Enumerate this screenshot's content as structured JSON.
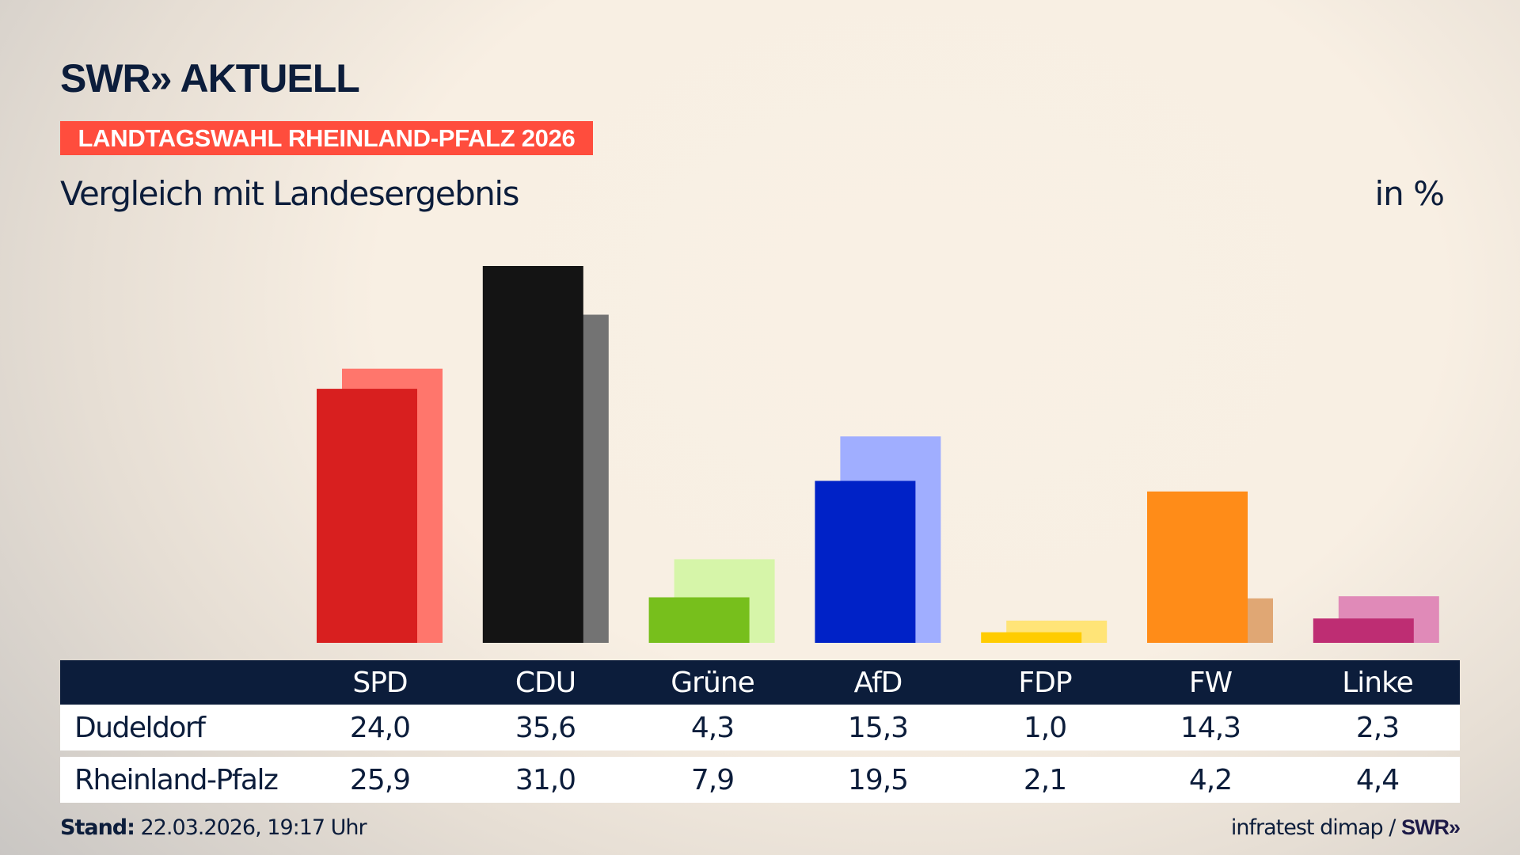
{
  "header": {
    "logo": "SWR» AKTUELL",
    "badge": "LANDTAGSWAHL RHEINLAND-PFALZ 2026",
    "subtitle": "Vergleich mit Landesergebnis",
    "unit": "in %"
  },
  "colors": {
    "background": "#f8efe3",
    "badge": "#ff4d3d",
    "navy": "#0c1d3b"
  },
  "chart_data": {
    "type": "bar",
    "title": "Vergleich mit Landesergebnis",
    "ylabel": "in %",
    "ylim": [
      0,
      35.6
    ],
    "grid": false,
    "categories": [
      "SPD",
      "CDU",
      "Grüne",
      "AfD",
      "FDP",
      "FW",
      "Linke"
    ],
    "series": [
      {
        "name": "Dudeldorf",
        "values": [
          24.0,
          35.6,
          4.3,
          15.3,
          1.0,
          14.3,
          2.3
        ],
        "colors": [
          "#d81f1f",
          "#141414",
          "#77bf1c",
          "#0022c7",
          "#ffcc00",
          "#ff8c18",
          "#be2d73"
        ]
      },
      {
        "name": "Rheinland-Pfalz",
        "values": [
          25.9,
          31.0,
          7.9,
          19.5,
          2.1,
          4.2,
          4.4
        ],
        "colors": [
          "#ff766c",
          "#737373",
          "#d6f5a9",
          "#a0aeff",
          "#ffe477",
          "#e0a774",
          "#e08ab8"
        ]
      }
    ]
  },
  "table": {
    "headers": [
      "SPD",
      "CDU",
      "Grüne",
      "AfD",
      "FDP",
      "FW",
      "Linke"
    ],
    "rows": [
      {
        "label": "Dudeldorf",
        "values": [
          "24,0",
          "35,6",
          "4,3",
          "15,3",
          "1,0",
          "14,3",
          "2,3"
        ]
      },
      {
        "label": "Rheinland-Pfalz",
        "values": [
          "25,9",
          "31,0",
          "7,9",
          "19,5",
          "2,1",
          "4,2",
          "4,4"
        ]
      }
    ]
  },
  "footer": {
    "stand_label": "Stand:",
    "stand_value": "22.03.2026, 19:17 Uhr",
    "source": "infratest dimap /",
    "source_logo": "SWR»"
  }
}
